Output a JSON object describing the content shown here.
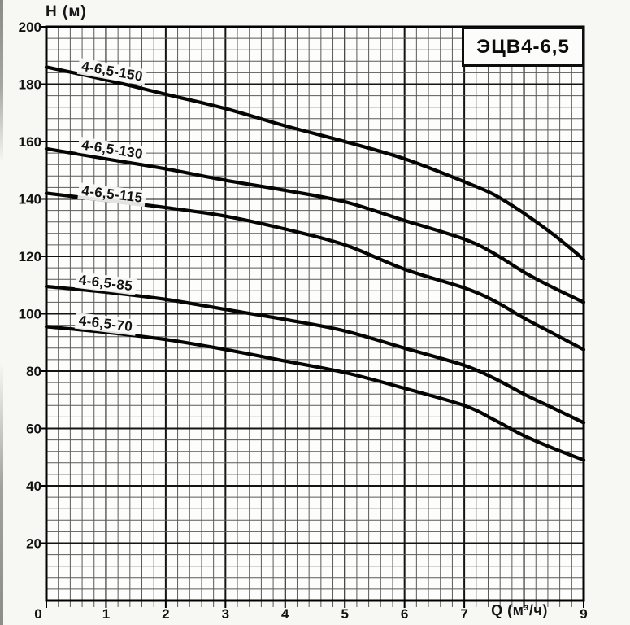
{
  "page": {
    "background": "#f7f7f4"
  },
  "title_box": {
    "label": "ЭЦВ4-6,5"
  },
  "axes": {
    "y_title": "H (м)",
    "x_title": "Q (м³/ч)"
  },
  "chart_data": {
    "type": "line",
    "title": "ЭЦВ4-6,5",
    "xlabel": "Q (м³/ч)",
    "ylabel": "H (м)",
    "xlim": [
      0,
      9
    ],
    "ylim": [
      0,
      200
    ],
    "x_major_step": 1,
    "x_minor_step": 0.2,
    "y_major_step": 20,
    "y_minor_step": 4,
    "grid": "major+minor",
    "legend": "labels-on-curves",
    "x_tick_values": [
      0,
      1,
      2,
      3,
      4,
      5,
      6,
      7,
      9
    ],
    "x_tick_labels": [
      "0",
      "1",
      "2",
      "3",
      "4",
      "5",
      "6",
      "7",
      "9"
    ],
    "x_axis_label_at": 7.93,
    "y_tick_values": [
      20,
      40,
      60,
      80,
      100,
      120,
      140,
      160,
      180,
      200
    ],
    "y_tick_labels": [
      "20",
      "40",
      "60",
      "80",
      "100",
      "120",
      "140",
      "160",
      "180",
      "200"
    ],
    "series": [
      {
        "name": "4-6,5-150",
        "x": [
          0,
          1,
          2,
          3,
          4,
          5,
          6,
          7,
          7.5,
          8,
          8.5,
          9
        ],
        "y": [
          186,
          181.5,
          176.5,
          171.5,
          165.5,
          160,
          154,
          146,
          141.5,
          135,
          127.5,
          119
        ],
        "label": {
          "text": "4-6,5-150",
          "q": 1.1,
          "h": 184.5,
          "rot": 10
        }
      },
      {
        "name": "4-6,5-130",
        "x": [
          0,
          1,
          2,
          3,
          4,
          5,
          6,
          7,
          7.5,
          8,
          8.5,
          9
        ],
        "y": [
          157.5,
          154,
          150.5,
          146.5,
          143,
          139,
          132.5,
          126,
          121,
          114.5,
          109,
          104
        ],
        "label": {
          "text": "4-6,5-130",
          "q": 1.1,
          "h": 157.3,
          "rot": 9
        }
      },
      {
        "name": "4-6,5-115",
        "x": [
          0,
          1,
          2,
          3,
          4,
          5,
          6,
          7,
          7.5,
          8,
          8.5,
          9
        ],
        "y": [
          142,
          139.5,
          137,
          134,
          129.5,
          124,
          115.5,
          109,
          104.5,
          98.5,
          93,
          87.5
        ],
        "label": {
          "text": "4-6,5-115",
          "q": 1.1,
          "h": 141.5,
          "rot": 7
        }
      },
      {
        "name": "4-6,5-85",
        "x": [
          0,
          1,
          2,
          3,
          4,
          5,
          6,
          7,
          7.5,
          8,
          8.5,
          9
        ],
        "y": [
          109.5,
          107.5,
          105,
          101.5,
          98,
          94,
          88,
          82,
          77.5,
          72,
          67,
          62
        ],
        "label": {
          "text": "4-6,5-85",
          "q": 1.0,
          "h": 110.5,
          "rot": 7
        }
      },
      {
        "name": "4-6,5-70",
        "x": [
          0,
          1,
          2,
          3,
          4,
          5,
          6,
          7,
          7.5,
          8,
          8.5,
          9
        ],
        "y": [
          95.5,
          93.5,
          91,
          87.5,
          83.5,
          79.5,
          74,
          68,
          63,
          57.5,
          53,
          49
        ],
        "label": {
          "text": "4-6,5-70",
          "q": 1.0,
          "h": 96.5,
          "rot": 7
        }
      }
    ],
    "style": {
      "curve_color": "#050505",
      "grid_minor_color": "#5a5a5a",
      "grid_major_color": "#141414",
      "frame_color": "#000000",
      "tick_text_color": "#111111",
      "plot_background": "#fdfdfb"
    }
  }
}
